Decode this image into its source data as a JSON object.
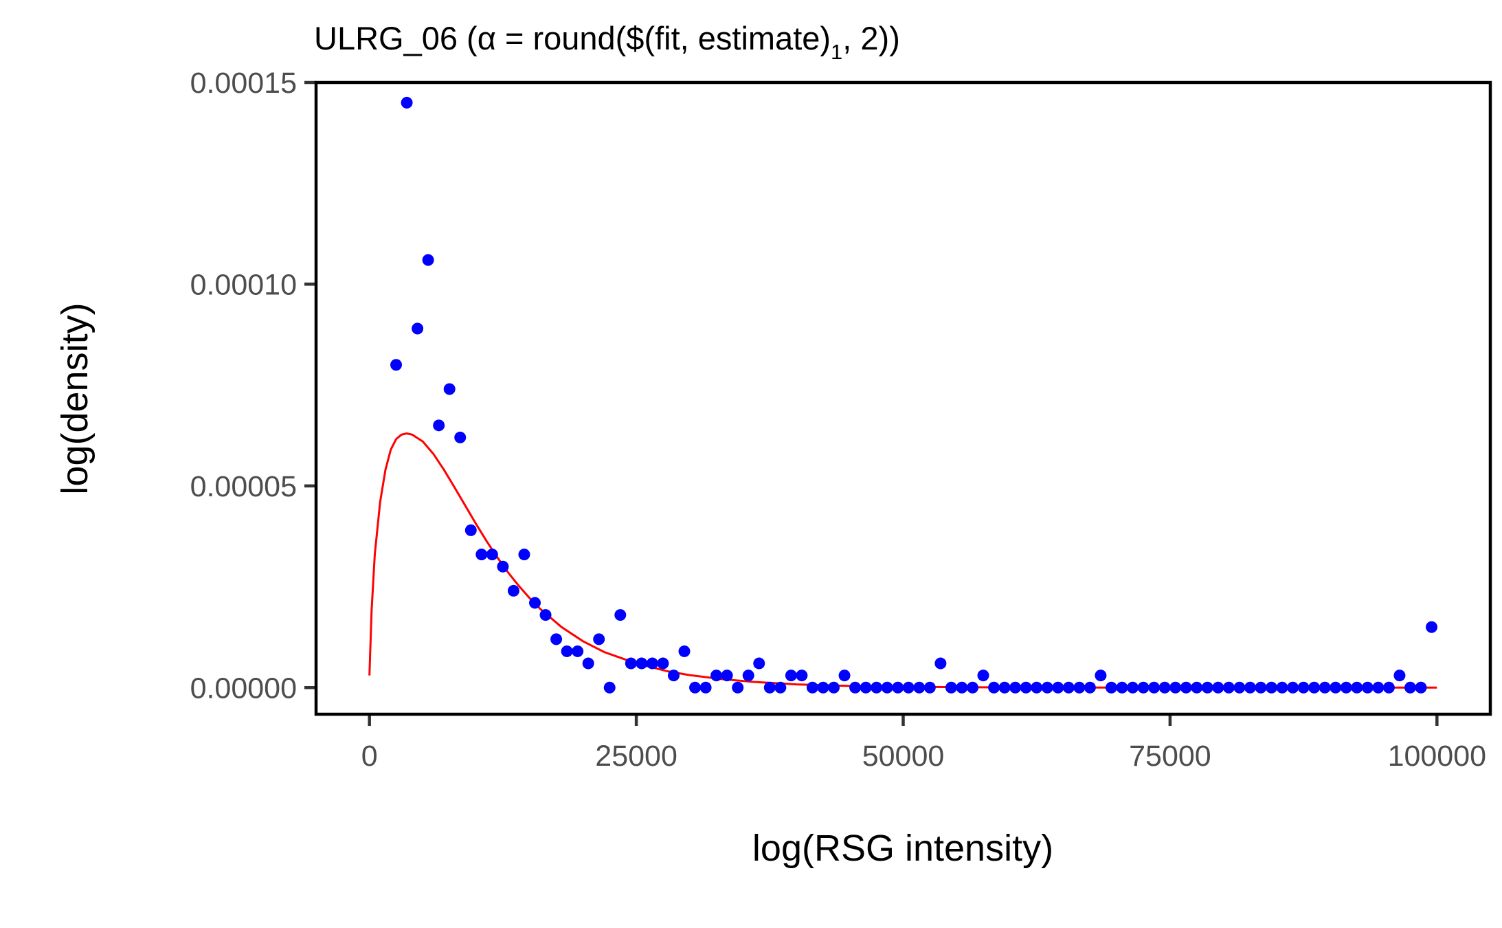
{
  "chart_data": {
    "type": "scatter",
    "title_main": "ULRG_06 (α = round($(fit, estimate)",
    "title_sub": "1",
    "title_tail": ", 2))",
    "xlabel": "log(RSG intensity)",
    "ylabel": "log(density)",
    "xlim": [
      -5000,
      105000
    ],
    "ylim": [
      -6.6e-06,
      0.00015
    ],
    "x_ticks": [
      0,
      25000,
      50000,
      75000,
      100000
    ],
    "x_tick_labels": [
      "0",
      "25000",
      "50000",
      "75000",
      "100000"
    ],
    "y_ticks": [
      0,
      5e-05,
      0.0001,
      0.00015
    ],
    "y_tick_labels": [
      "0.00000",
      "0.00005",
      "0.00010",
      "0.00015"
    ],
    "grid": false,
    "legend": "none",
    "colors": {
      "points": "#0000ff",
      "fit_curve": "#ff0000"
    },
    "series": [
      {
        "kind": "points",
        "x": [
          2500,
          3500,
          4500,
          5500,
          6500,
          7500,
          8500,
          9500,
          10500,
          11500,
          12500,
          13500,
          14500,
          15500,
          16500,
          17500,
          18500,
          19500,
          20500,
          21500,
          22500,
          23500,
          24500,
          25500,
          26500,
          27500,
          28500,
          29500,
          30500,
          31500,
          32500,
          33500,
          34500,
          35500,
          36500,
          37500,
          38500,
          39500,
          40500,
          41500,
          42500,
          43500,
          44500,
          45500,
          46500,
          47500,
          48500,
          49500,
          50500,
          51500,
          52500,
          53500,
          54500,
          55500,
          56500,
          57500,
          58500,
          59500,
          60500,
          61500,
          62500,
          63500,
          64500,
          65500,
          66500,
          67500,
          68500,
          69500,
          70500,
          71500,
          72500,
          73500,
          74500,
          75500,
          76500,
          77500,
          78500,
          79500,
          80500,
          81500,
          82500,
          83500,
          84500,
          85500,
          86500,
          87500,
          88500,
          89500,
          90500,
          91500,
          92500,
          93500,
          94500,
          95500,
          96500,
          97500,
          98500,
          99500
        ],
        "y": [
          8e-05,
          0.000145,
          8.9e-05,
          0.000106,
          6.5e-05,
          7.4e-05,
          6.2e-05,
          3.9e-05,
          3.3e-05,
          3.3e-05,
          3e-05,
          2.4e-05,
          3.3e-05,
          2.1e-05,
          1.8e-05,
          1.2e-05,
          9e-06,
          9e-06,
          6e-06,
          1.2e-05,
          0.0,
          1.8e-05,
          6e-06,
          6e-06,
          6e-06,
          6e-06,
          3e-06,
          9e-06,
          0.0,
          0.0,
          3e-06,
          3e-06,
          0.0,
          3e-06,
          6e-06,
          0.0,
          0.0,
          3e-06,
          3e-06,
          0.0,
          0.0,
          0.0,
          3e-06,
          0.0,
          0.0,
          0.0,
          0.0,
          0.0,
          0.0,
          0.0,
          0.0,
          6e-06,
          0.0,
          0.0,
          0.0,
          3e-06,
          0.0,
          0.0,
          0.0,
          0.0,
          0.0,
          0.0,
          0.0,
          0.0,
          0.0,
          0.0,
          3e-06,
          0.0,
          0.0,
          0.0,
          0.0,
          0.0,
          0.0,
          0.0,
          0.0,
          0.0,
          0.0,
          0.0,
          0.0,
          0.0,
          0.0,
          0.0,
          0.0,
          0.0,
          0.0,
          0.0,
          0.0,
          0.0,
          0.0,
          0.0,
          0.0,
          0.0,
          0.0,
          0.0,
          3e-06,
          0.0,
          0.0,
          1.5e-05
        ]
      },
      {
        "kind": "line",
        "x": [
          0,
          200,
          500,
          1000,
          1500,
          2000,
          2500,
          3000,
          3500,
          4000,
          5000,
          6000,
          7000,
          8000,
          9000,
          10000,
          11000,
          12000,
          13000,
          14000,
          15000,
          16000,
          18000,
          20000,
          22000,
          25000,
          28000,
          30000,
          33000,
          36000,
          40000,
          45000,
          50000,
          55000,
          60000,
          70000,
          80000,
          90000,
          100000
        ],
        "y": [
          3e-06,
          1.9e-05,
          3.3e-05,
          4.6e-05,
          5.4e-05,
          5.9e-05,
          6.16e-05,
          6.27e-05,
          6.3e-05,
          6.27e-05,
          6.1e-05,
          5.79e-05,
          5.39e-05,
          4.95e-05,
          4.5e-05,
          4.05e-05,
          3.62e-05,
          3.22e-05,
          2.85e-05,
          2.52e-05,
          2.22e-05,
          1.95e-05,
          1.5e-05,
          1.15e-05,
          8.8e-06,
          6e-06,
          4e-06,
          3.1e-06,
          2.1e-06,
          1.4e-06,
          8e-07,
          4e-07,
          2e-07,
          1e-07,
          5e-08,
          1e-08,
          0.0,
          0.0,
          0.0
        ]
      }
    ]
  }
}
